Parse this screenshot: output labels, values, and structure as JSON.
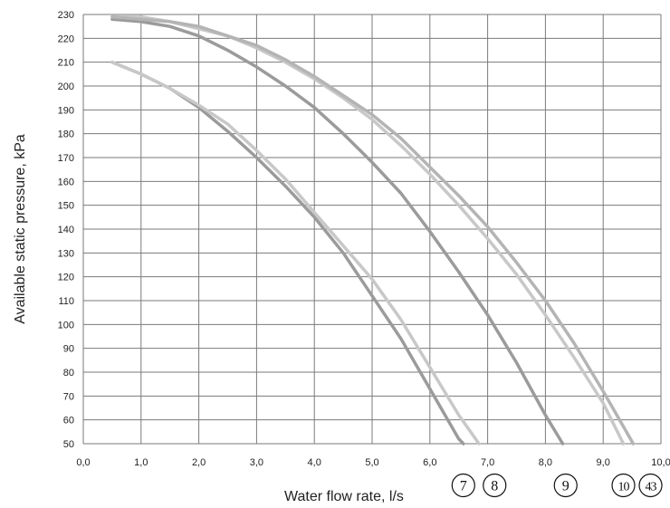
{
  "chart_data": {
    "type": "line",
    "title": "",
    "xlabel": "Water flow rate, l/s",
    "ylabel": "Available static pressure, kPa",
    "xlim": [
      0,
      10
    ],
    "ylim": [
      50,
      230
    ],
    "x_ticks": [
      "0,0",
      "1,0",
      "2,0",
      "3,0",
      "4,0",
      "5,0",
      "6,0",
      "7,0",
      "8,0",
      "9,0",
      "10,0"
    ],
    "y_ticks": [
      "50",
      "60",
      "70",
      "80",
      "90",
      "100",
      "110",
      "120",
      "130",
      "140",
      "150",
      "160",
      "170",
      "180",
      "190",
      "200",
      "210",
      "220",
      "230"
    ],
    "grid": true,
    "legend": "none",
    "series": [
      {
        "color": "#9b9b9b",
        "x": [
          0.5,
          1.0,
          1.5,
          2.0,
          2.5,
          3.0,
          3.5,
          4.0,
          4.5,
          5.0,
          5.5,
          6.0,
          6.5,
          6.58
        ],
        "y": [
          210,
          205,
          199,
          191,
          181,
          170,
          158,
          145,
          130,
          112,
          94,
          73,
          52,
          50
        ]
      },
      {
        "color": "#c8c8c8",
        "x": [
          0.5,
          1.0,
          1.5,
          2.0,
          2.5,
          3.0,
          3.5,
          4.0,
          4.5,
          5.0,
          5.5,
          6.0,
          6.5,
          6.85
        ],
        "y": [
          210,
          205,
          199,
          192,
          184,
          173,
          161,
          147,
          133,
          119,
          102,
          82,
          62,
          50
        ]
      },
      {
        "color": "#9b9b9b",
        "x": [
          0.5,
          1.0,
          1.5,
          2.0,
          2.5,
          3.0,
          3.5,
          4.0,
          4.5,
          5.0,
          5.5,
          6.0,
          6.5,
          7.0,
          7.5,
          8.0,
          8.3
        ],
        "y": [
          228,
          227,
          225,
          221,
          215,
          208,
          200,
          191,
          180,
          168,
          155,
          139,
          122,
          104,
          84,
          62,
          50
        ]
      },
      {
        "color": "#c8c8c8",
        "x": [
          0.5,
          1.0,
          1.5,
          2.0,
          2.5,
          3.0,
          3.5,
          4.0,
          4.5,
          5.0,
          5.5,
          6.0,
          6.5,
          7.0,
          7.5,
          8.0,
          8.5,
          9.0,
          9.35
        ],
        "y": [
          229,
          229,
          227,
          224,
          221,
          216,
          210,
          203,
          195,
          186,
          175,
          163,
          150,
          136,
          121,
          104,
          86,
          67,
          50
        ]
      },
      {
        "color": "#b4b4b4",
        "x": [
          0.5,
          1.0,
          1.5,
          2.0,
          2.5,
          3.0,
          3.5,
          4.0,
          4.5,
          5.0,
          5.5,
          6.0,
          6.5,
          7.0,
          7.5,
          8.0,
          8.5,
          9.0,
          9.52
        ],
        "y": [
          229,
          228,
          227,
          225,
          221,
          217,
          211,
          204,
          196,
          188,
          178,
          166,
          154,
          141,
          126,
          110,
          92,
          72,
          50
        ]
      }
    ],
    "markers": [
      {
        "label": "7",
        "x": 6.58
      },
      {
        "label": "8",
        "x": 7.12
      },
      {
        "label": "9",
        "x": 8.35
      },
      {
        "label": "10",
        "x": 9.35
      },
      {
        "label": "43",
        "x": 9.82
      }
    ]
  }
}
